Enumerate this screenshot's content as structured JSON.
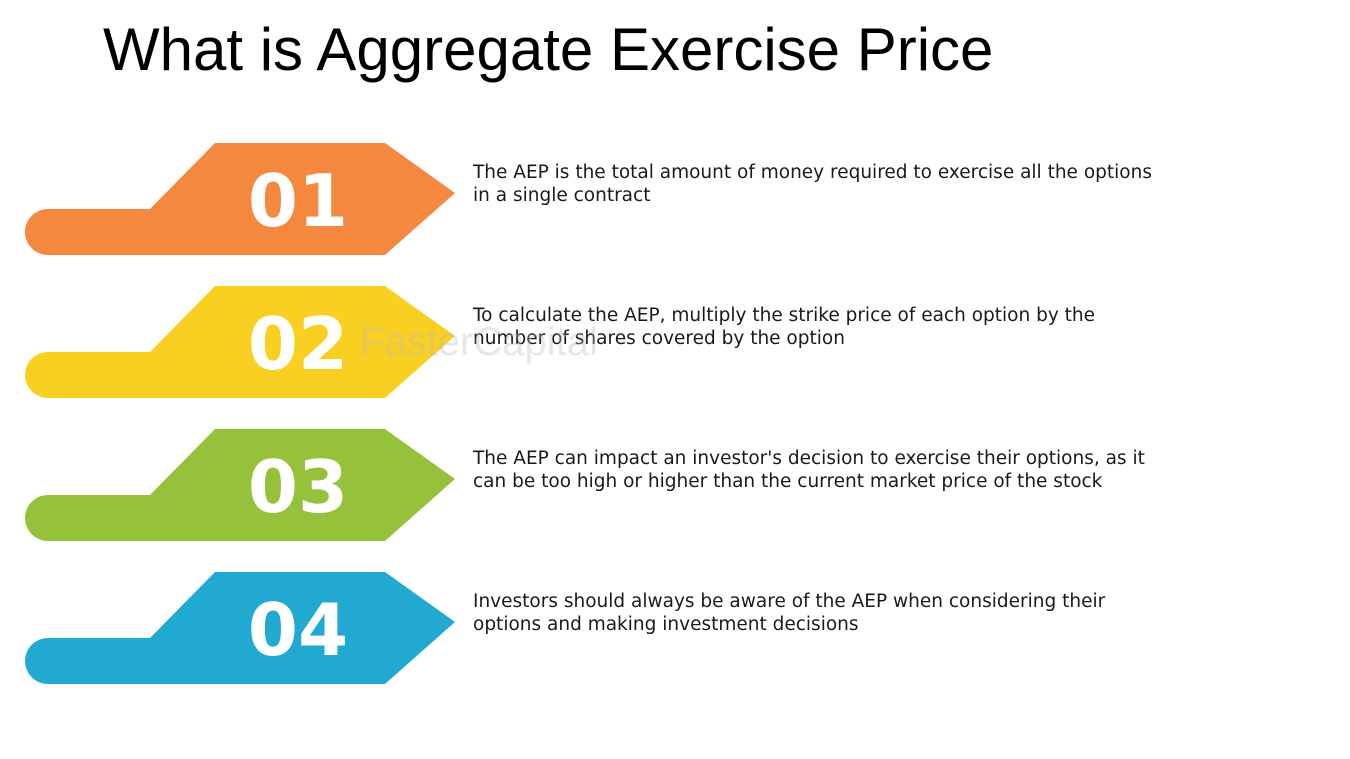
{
  "title": "What is Aggregate Exercise Price",
  "watermark": "FasterCapital",
  "items": [
    {
      "number": "01",
      "color": "#f5883f",
      "text": [
        "The AEP is the total amount of money required to exercise all the options",
        "in a single contract"
      ]
    },
    {
      "number": "02",
      "color": "#f9cf22",
      "text": [
        "To calculate the AEP, multiply the strike price of each option by the",
        "number of shares covered by the option"
      ]
    },
    {
      "number": "03",
      "color": "#96c23b",
      "text": [
        "The AEP can impact an investor's decision to exercise their options, as it",
        "can be too high or higher than the current market price of the stock"
      ]
    },
    {
      "number": "04",
      "color": "#22a9d1",
      "text": [
        "Investors should always be aware of the AEP when considering their",
        "options and making investment decisions"
      ]
    }
  ]
}
